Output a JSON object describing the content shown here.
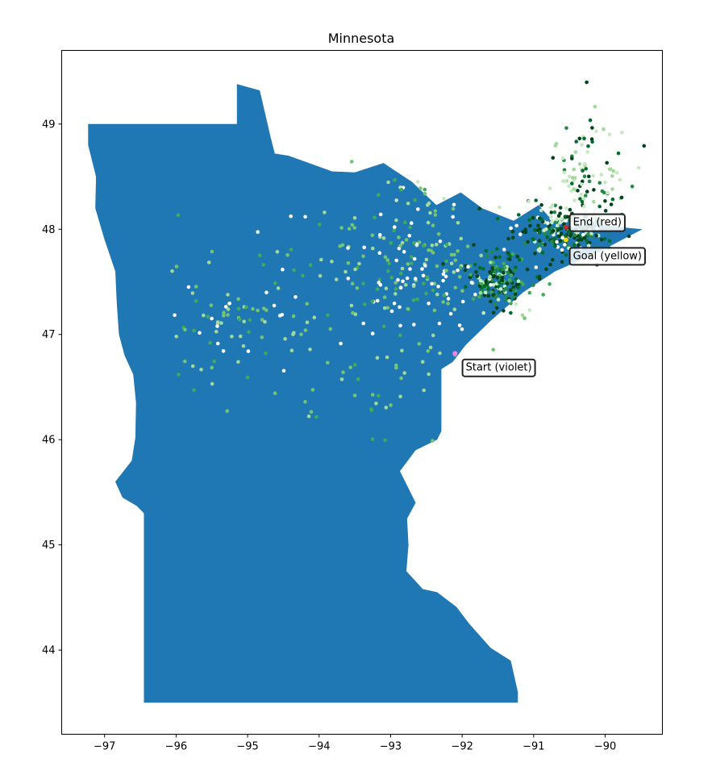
{
  "chart_data": {
    "type": "scatter",
    "title": "Minnesota",
    "xlabel": "",
    "ylabel": "",
    "xlim": [
      -97.6,
      -89.2
    ],
    "ylim": [
      43.2,
      49.7
    ],
    "x_ticks": [
      -97,
      -96,
      -95,
      -94,
      -93,
      -92,
      -91,
      -90
    ],
    "x_tick_labels": [
      "−97",
      "−96",
      "−95",
      "−94",
      "−93",
      "−92",
      "−91",
      "−90"
    ],
    "y_ticks": [
      44,
      45,
      46,
      47,
      48,
      49
    ],
    "y_tick_labels": [
      "44",
      "45",
      "46",
      "47",
      "48",
      "49"
    ],
    "grid": false,
    "state_fill_color": "#1f77b4",
    "state_outline": [
      [
        -97.23,
        49.0
      ],
      [
        -95.15,
        49.0
      ],
      [
        -95.15,
        49.38
      ],
      [
        -94.83,
        49.32
      ],
      [
        -94.68,
        48.88
      ],
      [
        -94.62,
        48.72
      ],
      [
        -94.43,
        48.7
      ],
      [
        -93.82,
        48.55
      ],
      [
        -93.5,
        48.54
      ],
      [
        -93.1,
        48.63
      ],
      [
        -92.7,
        48.45
      ],
      [
        -92.36,
        48.23
      ],
      [
        -92.02,
        48.35
      ],
      [
        -91.72,
        48.2
      ],
      [
        -91.28,
        48.08
      ],
      [
        -90.93,
        48.23
      ],
      [
        -90.75,
        48.09
      ],
      [
        -90.3,
        48.1
      ],
      [
        -89.95,
        48.03
      ],
      [
        -89.48,
        48.0
      ],
      [
        -90.1,
        47.78
      ],
      [
        -90.7,
        47.6
      ],
      [
        -91.15,
        47.4
      ],
      [
        -91.6,
        47.13
      ],
      [
        -91.95,
        46.9
      ],
      [
        -92.13,
        46.74
      ],
      [
        -92.29,
        46.67
      ],
      [
        -92.29,
        46.08
      ],
      [
        -92.35,
        46.0
      ],
      [
        -92.65,
        45.9
      ],
      [
        -92.87,
        45.7
      ],
      [
        -92.76,
        45.55
      ],
      [
        -92.65,
        45.4
      ],
      [
        -92.77,
        45.25
      ],
      [
        -92.75,
        45.0
      ],
      [
        -92.78,
        44.75
      ],
      [
        -92.55,
        44.58
      ],
      [
        -92.35,
        44.55
      ],
      [
        -92.08,
        44.41
      ],
      [
        -91.9,
        44.25
      ],
      [
        -91.6,
        44.02
      ],
      [
        -91.32,
        43.9
      ],
      [
        -91.22,
        43.6
      ],
      [
        -91.22,
        43.5
      ],
      [
        -96.45,
        43.5
      ],
      [
        -96.45,
        45.3
      ],
      [
        -96.55,
        45.37
      ],
      [
        -96.75,
        45.45
      ],
      [
        -96.85,
        45.6
      ],
      [
        -96.62,
        45.8
      ],
      [
        -96.57,
        46.02
      ],
      [
        -96.56,
        46.35
      ],
      [
        -96.6,
        46.62
      ],
      [
        -96.72,
        46.8
      ],
      [
        -96.8,
        47.0
      ],
      [
        -96.83,
        47.3
      ],
      [
        -96.85,
        47.6
      ],
      [
        -97.0,
        47.9
      ],
      [
        -97.13,
        48.2
      ],
      [
        -97.12,
        48.5
      ],
      [
        -97.23,
        48.8
      ],
      [
        -97.23,
        49.0
      ]
    ],
    "point_colors": [
      "#c7e9c0",
      "#74c476",
      "#41ab5d",
      "#238b45",
      "#006d2c",
      "#00441b",
      "#ffffff",
      "#a1d99b"
    ],
    "clusters": [
      {
        "cx": -91.5,
        "cy": 47.52,
        "sx": 0.22,
        "sy": 0.13,
        "n": 170,
        "palette": [
          3,
          4,
          5,
          5,
          2,
          0
        ]
      },
      {
        "cx": -90.65,
        "cy": 47.98,
        "sx": 0.3,
        "sy": 0.12,
        "n": 210,
        "palette": [
          4,
          5,
          5,
          3,
          0,
          6
        ]
      },
      {
        "cx": -90.35,
        "cy": 48.45,
        "sx": 0.35,
        "sy": 0.3,
        "n": 120,
        "palette": [
          0,
          0,
          7,
          3,
          5,
          4
        ]
      },
      {
        "cx": -92.3,
        "cy": 47.55,
        "sx": 0.55,
        "sy": 0.25,
        "n": 110,
        "palette": [
          6,
          6,
          1,
          2,
          7
        ]
      },
      {
        "cx": -93.4,
        "cy": 47.55,
        "sx": 0.65,
        "sy": 0.35,
        "n": 90,
        "palette": [
          1,
          2,
          6,
          7
        ]
      },
      {
        "cx": -95.2,
        "cy": 47.15,
        "sx": 0.5,
        "sy": 0.28,
        "n": 80,
        "palette": [
          1,
          2,
          7,
          6
        ]
      },
      {
        "cx": -93.4,
        "cy": 46.5,
        "sx": 0.6,
        "sy": 0.3,
        "n": 40,
        "palette": [
          1,
          2,
          7
        ]
      },
      {
        "cx": -92.6,
        "cy": 48.15,
        "sx": 0.45,
        "sy": 0.2,
        "n": 40,
        "palette": [
          1,
          2,
          0,
          7,
          6
        ]
      }
    ],
    "markers": [
      {
        "name": "Start",
        "x": -92.1,
        "y": 46.82,
        "color": "#ee82ee"
      },
      {
        "name": "Goal",
        "x": -90.55,
        "y": 47.9,
        "color": "#ffd700"
      },
      {
        "name": "End",
        "x": -90.55,
        "y": 48.02,
        "color": "#d62728"
      }
    ],
    "annotations": [
      {
        "text": "Start (violet)",
        "x": -91.95,
        "y": 46.69
      },
      {
        "text": "Goal (yellow)",
        "x": -90.45,
        "y": 47.75
      },
      {
        "text": "End (red)",
        "x": -90.45,
        "y": 48.07
      }
    ]
  }
}
